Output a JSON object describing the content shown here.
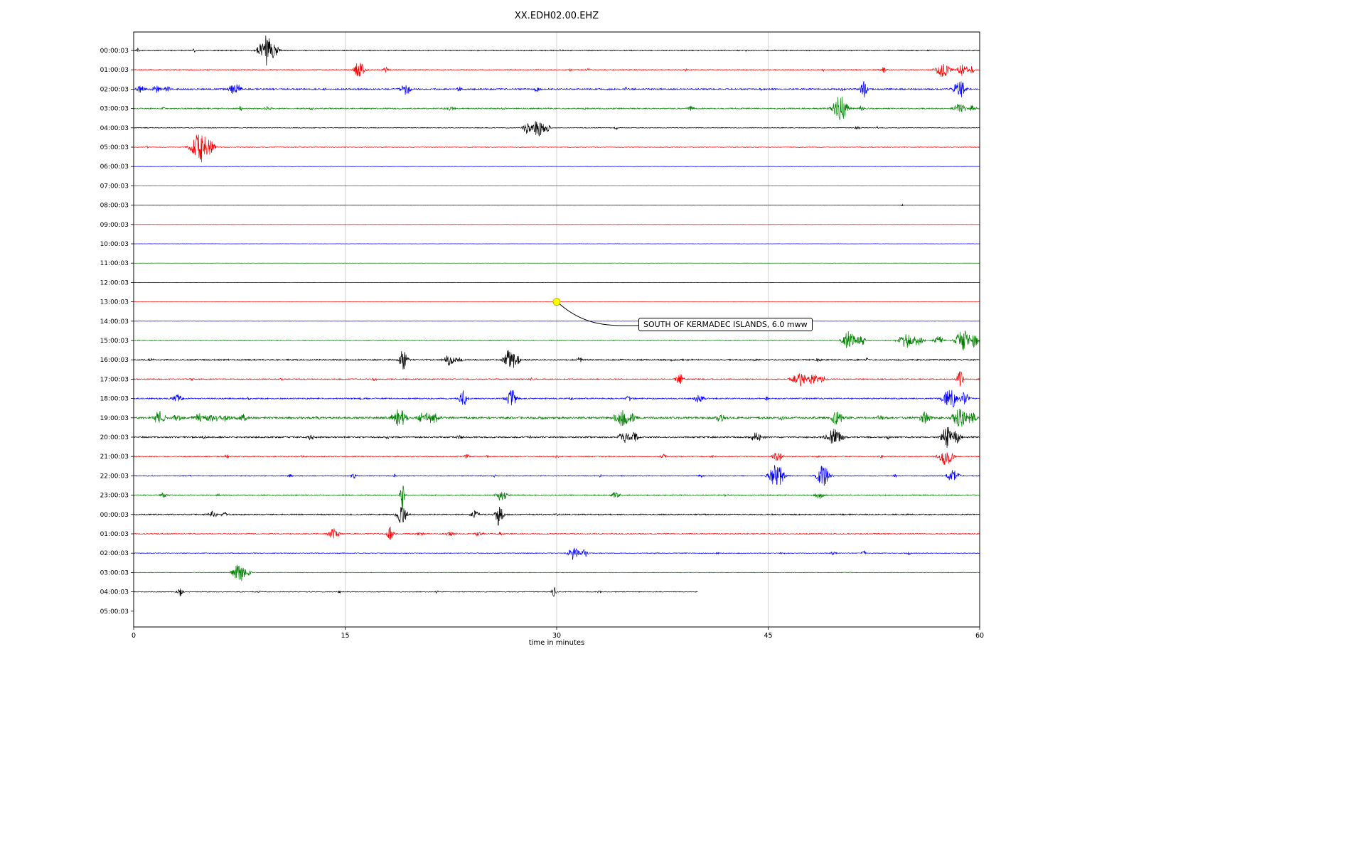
{
  "chart_data": {
    "type": "line",
    "title": "XX.EDH02.00.EHZ",
    "xlabel": "time in minutes",
    "x_ticks": [
      0,
      15,
      30,
      45,
      60
    ],
    "x_range_minutes": [
      0,
      60
    ],
    "minutes_per_row": 60,
    "grid": true,
    "grid_color": "#c8c8c8",
    "background": "#ffffff",
    "trace_color_cycle": [
      "#000000",
      "#ff0000",
      "#0000ff",
      "#008000"
    ],
    "annotation": {
      "text": "SOUTH OF KERMADEC ISLANDS, 6.0 mww",
      "row_label": "13:00:03",
      "row_index": 13,
      "minute": 30,
      "marker_color": "#ffff00"
    },
    "rows": [
      {
        "label": "00:00:03",
        "color": "#000000",
        "noise": 0.7,
        "events": [
          [
            0.3,
            4,
            0.05
          ],
          [
            4.3,
            2.5,
            0.08
          ],
          [
            9.4,
            22,
            0.35
          ],
          [
            10.0,
            8,
            0.25
          ],
          [
            30.3,
            1.5,
            0.08
          ],
          [
            43.5,
            1.5,
            0.1
          ]
        ]
      },
      {
        "label": "01:00:03",
        "color": "#ff0000",
        "noise": 0.6,
        "events": [
          [
            16.0,
            12,
            0.25
          ],
          [
            17.9,
            4,
            0.15
          ],
          [
            31.0,
            3,
            0.08
          ],
          [
            32.2,
            2.5,
            0.08
          ],
          [
            39.2,
            2,
            0.06
          ],
          [
            48.9,
            2,
            0.06
          ],
          [
            53.2,
            4.5,
            0.12
          ],
          [
            57.4,
            11,
            0.35
          ],
          [
            58.8,
            9,
            0.25
          ],
          [
            59.4,
            6,
            0.15
          ]
        ]
      },
      {
        "label": "02:00:03",
        "color": "#0000ff",
        "noise": 1.0,
        "events": [
          [
            0.5,
            5,
            0.25
          ],
          [
            1.6,
            7,
            0.2
          ],
          [
            2.4,
            5,
            0.15
          ],
          [
            7.2,
            9,
            0.3
          ],
          [
            13.5,
            2,
            0.1
          ],
          [
            19.3,
            8,
            0.25
          ],
          [
            23.1,
            4,
            0.12
          ],
          [
            28.6,
            4.5,
            0.15
          ],
          [
            34.9,
            2,
            0.1
          ],
          [
            44.5,
            2,
            0.08
          ],
          [
            50.3,
            3,
            0.1
          ],
          [
            51.8,
            15,
            0.15
          ],
          [
            58.6,
            13,
            0.3
          ]
        ]
      },
      {
        "label": "03:00:03",
        "color": "#008000",
        "noise": 0.8,
        "events": [
          [
            2.1,
            2,
            0.1
          ],
          [
            7.6,
            3.5,
            0.15
          ],
          [
            9.5,
            2.5,
            0.2
          ],
          [
            12.6,
            2.5,
            0.1
          ],
          [
            22.4,
            3,
            0.3
          ],
          [
            26.2,
            2,
            0.08
          ],
          [
            32.0,
            1.8,
            0.1
          ],
          [
            39.5,
            3.5,
            0.15
          ],
          [
            50.1,
            20,
            0.35
          ],
          [
            51.6,
            4,
            0.12
          ],
          [
            58.6,
            7,
            0.3
          ],
          [
            59.5,
            5,
            0.15
          ]
        ]
      },
      {
        "label": "04:00:03",
        "color": "#000000",
        "noise": 0.45,
        "events": [
          [
            27.9,
            10,
            0.2
          ],
          [
            28.7,
            13,
            0.25
          ],
          [
            29.3,
            8,
            0.15
          ],
          [
            34.2,
            3,
            0.08
          ],
          [
            51.3,
            3,
            0.12
          ],
          [
            52.7,
            1.8,
            0.08
          ]
        ]
      },
      {
        "label": "05:00:03",
        "color": "#ff0000",
        "noise": 0.4,
        "events": [
          [
            1.0,
            2,
            0.06
          ],
          [
            4.7,
            22,
            0.4
          ],
          [
            5.4,
            10,
            0.25
          ]
        ]
      },
      {
        "label": "06:00:03",
        "color": "#0000ff",
        "noise": 0.18,
        "events": []
      },
      {
        "label": "07:00:03",
        "color": "#008000",
        "noise": 0.15,
        "events": []
      },
      {
        "label": "08:00:03",
        "color": "#000000",
        "noise": 0.15,
        "events": [
          [
            54.5,
            2,
            0.04
          ]
        ]
      },
      {
        "label": "09:00:03",
        "color": "#ff0000",
        "noise": 0.15,
        "events": []
      },
      {
        "label": "10:00:03",
        "color": "#0000ff",
        "noise": 0.15,
        "events": []
      },
      {
        "label": "11:00:03",
        "color": "#008000",
        "noise": 0.15,
        "events": []
      },
      {
        "label": "12:00:03",
        "color": "#000000",
        "noise": 0.15,
        "events": []
      },
      {
        "label": "13:00:03",
        "color": "#ff0000",
        "noise": 0.15,
        "events": []
      },
      {
        "label": "14:00:03",
        "color": "#0000ff",
        "noise": 0.15,
        "events": []
      },
      {
        "label": "15:00:03",
        "color": "#008000",
        "noise": 0.5,
        "events": [
          [
            50.7,
            15,
            0.3
          ],
          [
            51.6,
            8,
            0.2
          ],
          [
            54.8,
            11,
            0.35
          ],
          [
            55.6,
            9,
            0.25
          ],
          [
            57.1,
            7,
            0.25
          ],
          [
            58.8,
            15,
            0.35
          ],
          [
            59.6,
            9,
            0.2
          ]
        ]
      },
      {
        "label": "16:00:03",
        "color": "#000000",
        "noise": 0.9,
        "events": [
          [
            1.2,
            2,
            0.15
          ],
          [
            19.1,
            16,
            0.2
          ],
          [
            22.4,
            8,
            0.25
          ],
          [
            23.1,
            5,
            0.15
          ],
          [
            26.6,
            15,
            0.25
          ],
          [
            27.1,
            10,
            0.2
          ],
          [
            31.6,
            4,
            0.15
          ],
          [
            38.2,
            2,
            0.08
          ],
          [
            44.0,
            1.8,
            0.1
          ],
          [
            48.6,
            3,
            0.15
          ],
          [
            52.0,
            2,
            0.1
          ]
        ]
      },
      {
        "label": "17:00:03",
        "color": "#ff0000",
        "noise": 0.7,
        "events": [
          [
            4.1,
            2.5,
            0.12
          ],
          [
            10.5,
            1.8,
            0.08
          ],
          [
            17.1,
            3,
            0.12
          ],
          [
            28.2,
            2,
            0.08
          ],
          [
            38.7,
            8,
            0.2
          ],
          [
            47.2,
            11,
            0.35
          ],
          [
            48.2,
            8,
            0.25
          ],
          [
            48.9,
            6,
            0.15
          ],
          [
            58.6,
            13,
            0.15
          ]
        ]
      },
      {
        "label": "18:00:03",
        "color": "#0000ff",
        "noise": 0.85,
        "events": [
          [
            3.1,
            6,
            0.25
          ],
          [
            8.2,
            2,
            0.1
          ],
          [
            16.1,
            2.5,
            0.1
          ],
          [
            23.4,
            14,
            0.2
          ],
          [
            26.8,
            13,
            0.25
          ],
          [
            31.0,
            2.5,
            0.1
          ],
          [
            35.1,
            4,
            0.15
          ],
          [
            40.1,
            6,
            0.25
          ],
          [
            44.9,
            2.5,
            0.1
          ],
          [
            57.9,
            15,
            0.35
          ],
          [
            58.9,
            9,
            0.25
          ]
        ]
      },
      {
        "label": "19:00:03",
        "color": "#008000",
        "noise": 1.4,
        "events": [
          [
            1.8,
            11,
            0.25
          ],
          [
            3.1,
            5,
            0.25
          ],
          [
            4.6,
            6,
            0.35
          ],
          [
            5.6,
            6,
            0.35
          ],
          [
            6.6,
            5,
            0.25
          ],
          [
            7.7,
            5,
            0.25
          ],
          [
            13.1,
            2.5,
            0.1
          ],
          [
            18.8,
            15,
            0.35
          ],
          [
            20.6,
            8,
            0.35
          ],
          [
            21.4,
            8,
            0.25
          ],
          [
            29.0,
            2.5,
            0.1
          ],
          [
            34.6,
            13,
            0.35
          ],
          [
            35.4,
            6,
            0.2
          ],
          [
            41.6,
            6,
            0.2
          ],
          [
            46.0,
            3,
            0.15
          ],
          [
            49.9,
            12,
            0.25
          ],
          [
            53.0,
            4,
            0.2
          ],
          [
            56.1,
            9,
            0.25
          ],
          [
            58.6,
            15,
            0.35
          ],
          [
            59.4,
            9,
            0.25
          ]
        ]
      },
      {
        "label": "20:00:03",
        "color": "#000000",
        "noise": 1.0,
        "events": [
          [
            5.0,
            2,
            0.1
          ],
          [
            12.6,
            4,
            0.15
          ],
          [
            18.0,
            2,
            0.1
          ],
          [
            23.1,
            3,
            0.15
          ],
          [
            28.1,
            2.5,
            0.1
          ],
          [
            34.8,
            9,
            0.25
          ],
          [
            35.5,
            9,
            0.2
          ],
          [
            44.2,
            7,
            0.3
          ],
          [
            49.7,
            15,
            0.35
          ],
          [
            53.5,
            3,
            0.15
          ],
          [
            57.7,
            15,
            0.3
          ],
          [
            58.3,
            10,
            0.25
          ]
        ]
      },
      {
        "label": "21:00:03",
        "color": "#ff0000",
        "noise": 0.6,
        "events": [
          [
            6.6,
            3,
            0.12
          ],
          [
            12.0,
            2,
            0.1
          ],
          [
            23.6,
            4,
            0.12
          ],
          [
            25.1,
            2.5,
            0.08
          ],
          [
            30.0,
            2,
            0.1
          ],
          [
            37.6,
            3.5,
            0.15
          ],
          [
            41.0,
            2,
            0.1
          ],
          [
            45.7,
            7,
            0.25
          ],
          [
            48.6,
            3,
            0.12
          ],
          [
            53.0,
            2.5,
            0.12
          ],
          [
            57.6,
            13,
            0.35
          ]
        ]
      },
      {
        "label": "22:00:03",
        "color": "#0000ff",
        "noise": 0.6,
        "events": [
          [
            4.0,
            1.8,
            0.1
          ],
          [
            11.1,
            2.5,
            0.12
          ],
          [
            15.6,
            4,
            0.15
          ],
          [
            18.5,
            2.5,
            0.1
          ],
          [
            25.6,
            2,
            0.08
          ],
          [
            33.1,
            2,
            0.1
          ],
          [
            40.2,
            3,
            0.12
          ],
          [
            45.6,
            17,
            0.35
          ],
          [
            48.9,
            15,
            0.3
          ],
          [
            54.0,
            2.5,
            0.1
          ],
          [
            58.1,
            9,
            0.3
          ]
        ]
      },
      {
        "label": "23:00:03",
        "color": "#008000",
        "noise": 0.7,
        "events": [
          [
            2.1,
            4,
            0.15
          ],
          [
            6.0,
            2,
            0.1
          ],
          [
            19.05,
            24,
            0.1
          ],
          [
            26.1,
            9,
            0.25
          ],
          [
            34.2,
            5,
            0.2
          ],
          [
            42.0,
            2,
            0.1
          ],
          [
            48.6,
            5,
            0.25
          ]
        ]
      },
      {
        "label": "00:00:03",
        "color": "#000000",
        "noise": 0.8,
        "events": [
          [
            5.6,
            4,
            0.25
          ],
          [
            6.4,
            3,
            0.15
          ],
          [
            19.0,
            15,
            0.25
          ],
          [
            24.2,
            6,
            0.2
          ],
          [
            25.9,
            17,
            0.2
          ],
          [
            30.0,
            2,
            0.1
          ]
        ]
      },
      {
        "label": "01:00:03",
        "color": "#ff0000",
        "noise": 0.6,
        "events": [
          [
            14.2,
            8,
            0.25
          ],
          [
            18.2,
            11,
            0.15
          ],
          [
            20.3,
            2.5,
            0.2
          ],
          [
            22.5,
            3,
            0.25
          ],
          [
            24.5,
            3,
            0.25
          ],
          [
            26.0,
            3,
            0.15
          ]
        ]
      },
      {
        "label": "02:00:03",
        "color": "#0000ff",
        "noise": 0.5,
        "events": [
          [
            31.2,
            11,
            0.25
          ],
          [
            32.0,
            6,
            0.15
          ],
          [
            37.0,
            1.8,
            0.1
          ],
          [
            41.4,
            2,
            0.08
          ],
          [
            46.0,
            1.8,
            0.1
          ],
          [
            49.6,
            3,
            0.15
          ],
          [
            51.8,
            3,
            0.12
          ],
          [
            55.0,
            2,
            0.1
          ]
        ]
      },
      {
        "label": "03:00:03",
        "color": "#008000",
        "noise": 0.4,
        "events": [
          [
            7.5,
            15,
            0.3
          ],
          [
            8.1,
            5,
            0.15
          ]
        ]
      },
      {
        "label": "04:00:03",
        "color": "#000000",
        "noise": 0.5,
        "end_minute": 40,
        "events": [
          [
            3.3,
            6,
            0.15
          ],
          [
            9.0,
            1.8,
            0.1
          ],
          [
            14.6,
            2.2,
            0.08
          ],
          [
            21.5,
            1.8,
            0.1
          ],
          [
            29.8,
            7,
            0.12
          ],
          [
            33.0,
            1.8,
            0.1
          ]
        ]
      },
      {
        "label": "05:00:03",
        "color": null,
        "noise": 0,
        "events": null
      }
    ]
  }
}
